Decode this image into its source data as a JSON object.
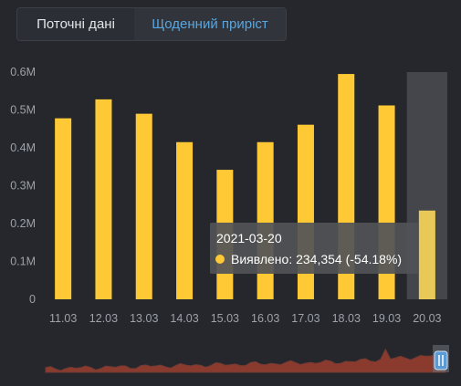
{
  "tabs": [
    {
      "label": "Поточні дані",
      "active": false
    },
    {
      "label": "Щоденний приріст",
      "active": true
    }
  ],
  "colors": {
    "background": "#25272c",
    "bar": "#ffc936",
    "bar_highlight": "#e8c957",
    "active_tab_text": "#58a6e0",
    "range_handle": "#5b9bd5",
    "range_fill": "#8b3a2e"
  },
  "chart_data": {
    "type": "bar",
    "categories": [
      "11.03",
      "12.03",
      "13.03",
      "14.03",
      "15.03",
      "16.03",
      "17.03",
      "18.03",
      "19.03",
      "20.03"
    ],
    "series": [
      {
        "values": [
          478000,
          528000,
          490000,
          415000,
          342000,
          415000,
          461000,
          595000,
          512000,
          234354
        ]
      }
    ],
    "y_ticks": [
      "0",
      "0.1M",
      "0.2M",
      "0.3M",
      "0.4M",
      "0.5M",
      "0.6M"
    ],
    "ylim": [
      0,
      600000
    ],
    "grid": false,
    "highlighted_category": "20.03",
    "tooltip": {
      "date": "2021-03-20",
      "label": "Виявлено: 234,354 (-54.18%)"
    }
  }
}
